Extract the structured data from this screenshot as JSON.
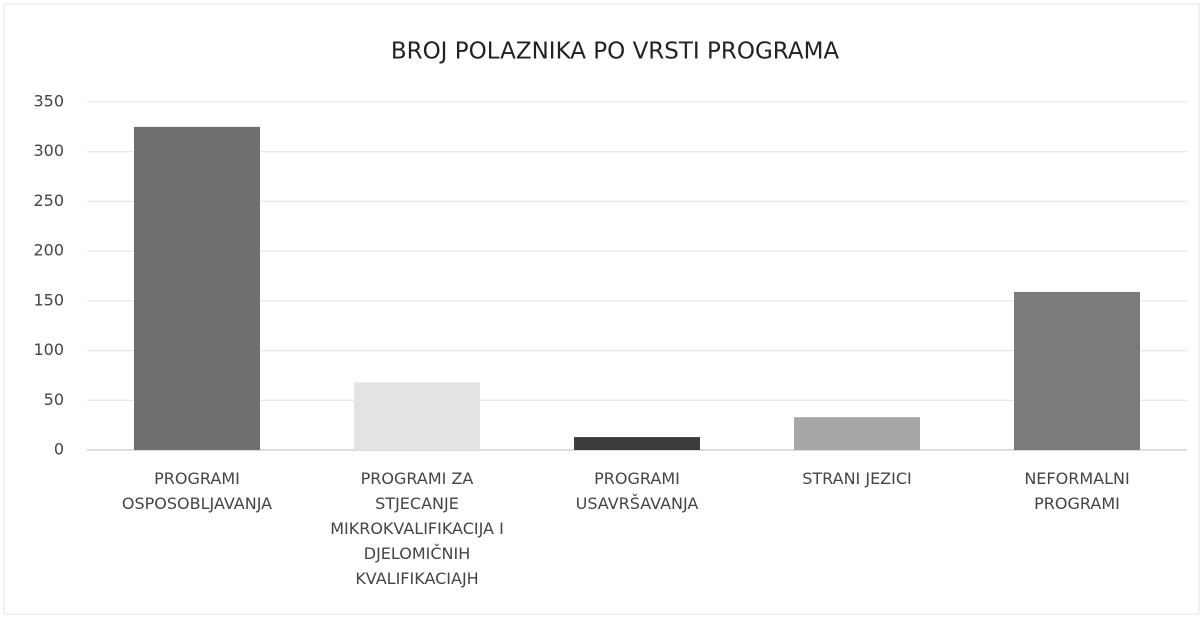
{
  "chart_data": {
    "type": "bar",
    "title": "BROJ POLAZNIKA PO VRSTI PROGRAMA",
    "categories": [
      "PROGRAMI\nOSPOSOBLJAVANJA",
      "PROGRAMI ZA\nSTJECANJE\nMIKROKVALIFIKACIJA I\nDJELOMIČNIH\nKVALIFIKACIAJH",
      "PROGRAMI\nUSAVRŠAVANJA",
      "STRANI JEZICI",
      "NEFORMALNI\nPROGRAMI"
    ],
    "values": [
      325,
      68,
      13,
      33,
      159
    ],
    "colors": [
      "#6f6f6f",
      "#e3e3e3",
      "#3b3b3b",
      "#a7a7a7",
      "#7b7b7b"
    ],
    "ylim": [
      0,
      350
    ],
    "yticks": [
      0,
      50,
      100,
      150,
      200,
      250,
      300,
      350
    ],
    "grid": true
  }
}
